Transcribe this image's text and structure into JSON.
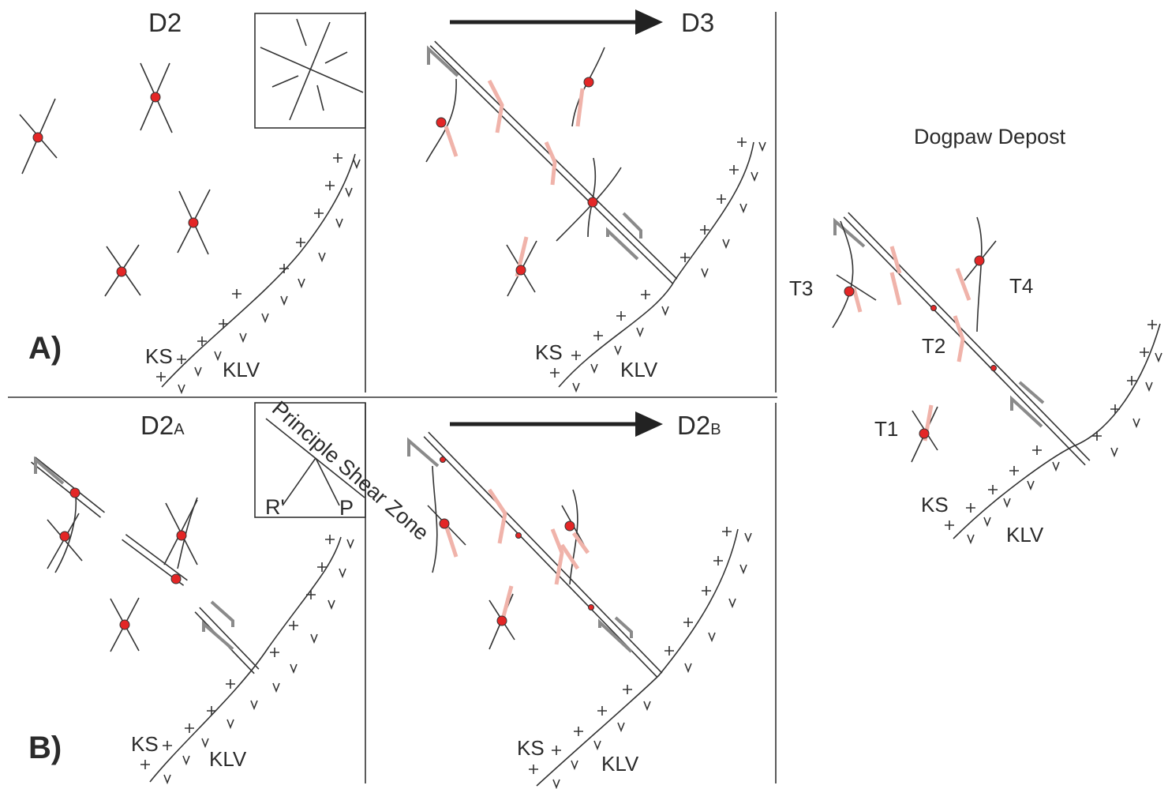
{
  "rows": [
    {
      "label": "A)",
      "panels": [
        {
          "title": "D2",
          "ks": "KS",
          "klv": "KLV"
        },
        {
          "title": "D3",
          "ks": "KS",
          "klv": "KLV"
        }
      ]
    },
    {
      "label": "B)",
      "panels": [
        {
          "title": "D2",
          "subscript": "A",
          "ks": "KS",
          "klv": "KLV"
        },
        {
          "title": "D2",
          "subscript": "B",
          "ks": "KS",
          "klv": "KLV"
        }
      ]
    }
  ],
  "inset_b": {
    "zone": "Principle Shear Zone",
    "left": "R'",
    "right": "P"
  },
  "dogpaw": {
    "title": "Dogpaw Depost",
    "ks": "KS",
    "klv": "KLV",
    "targets": [
      "T1",
      "T2",
      "T3",
      "T4"
    ]
  }
}
